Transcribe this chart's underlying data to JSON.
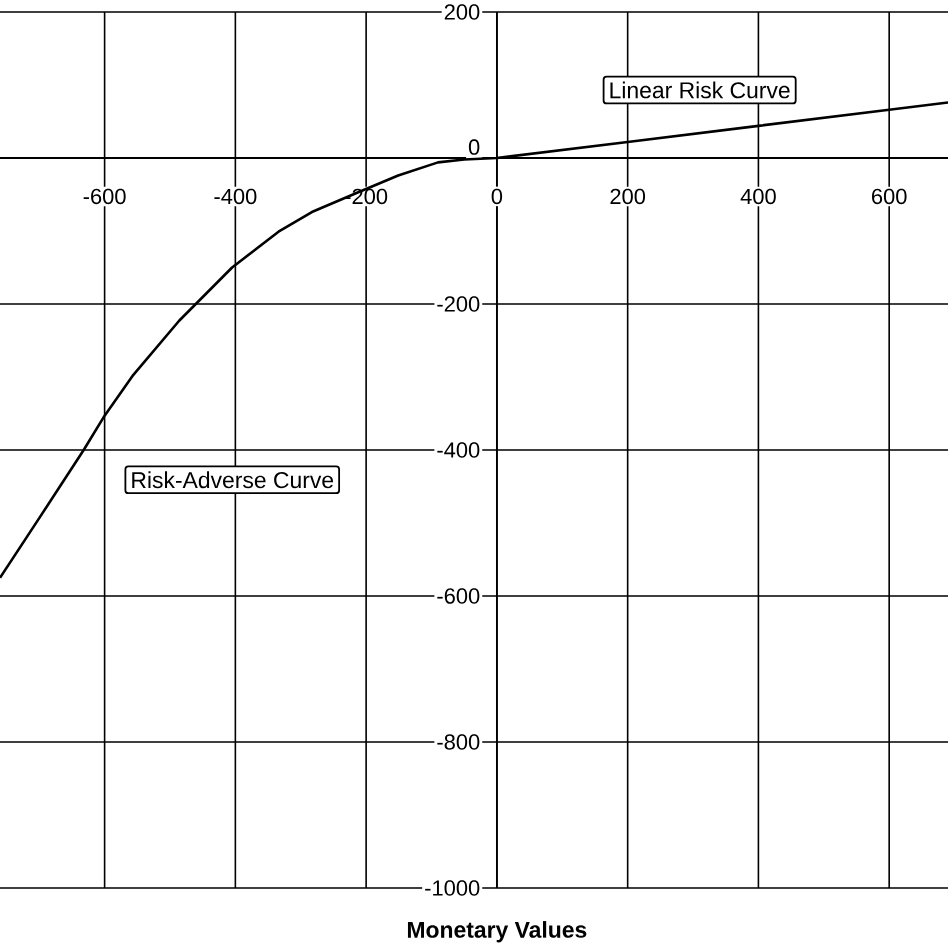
{
  "chart_data": {
    "type": "line",
    "xlabel": "Monetary Values",
    "x": [
      -760,
      -699,
      -632,
      -600,
      -556,
      -486,
      -405,
      -334,
      -283,
      -212,
      -151,
      -90,
      -50,
      0,
      200,
      400,
      600,
      690
    ],
    "values": [
      -575,
      -492,
      -400,
      -353,
      -297,
      -223,
      -150,
      -101,
      -74,
      -47,
      -24,
      -6,
      -2,
      0,
      22,
      44,
      66,
      76
    ],
    "color": "#000000",
    "annotations": [
      "Risk-Adverse Curve",
      "Linear Risk Curve"
    ],
    "xlim": [
      -760,
      690
    ],
    "ylim": [
      -1000,
      200
    ],
    "xticks": [
      -600,
      -400,
      -200,
      0,
      200,
      400,
      600
    ],
    "yticks": [
      -1000,
      -800,
      -600,
      -400,
      -200,
      0,
      200
    ],
    "grid": true,
    "marker": "none",
    "line_style": "solid"
  }
}
